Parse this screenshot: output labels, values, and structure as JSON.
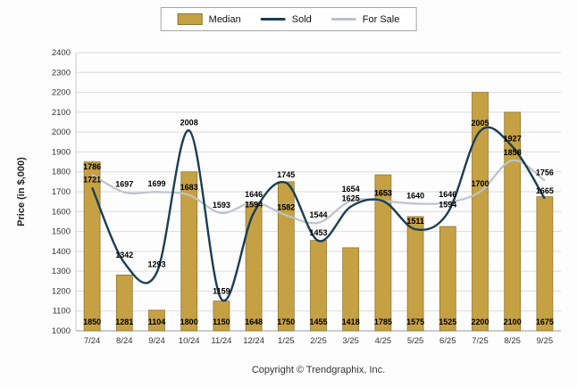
{
  "legend": {
    "median": "Median",
    "sold": "Sold",
    "for_sale": "For Sale"
  },
  "footer": {
    "copyright": "Copyright © Trendgraphix, Inc."
  },
  "colors": {
    "median_bar": "#C5A143",
    "median_bar_border": "#8F7430",
    "sold_line": "#1C3D56",
    "for_sale_line": "#BCC3CB",
    "grid": "#DCDCDC",
    "axis": "#999999",
    "left_axis": "#CCCCCC",
    "label": "#000000",
    "tick": "#333333",
    "axis_title": "#222222"
  },
  "chart_data": {
    "type": "bar",
    "subtype": "combo-bar-line",
    "title": "",
    "categories": [
      "7/24",
      "8/24",
      "9/24",
      "10/24",
      "11/24",
      "12/24",
      "1/25",
      "2/25",
      "3/25",
      "4/25",
      "5/25",
      "6/25",
      "7/25",
      "8/25",
      "9/25"
    ],
    "series": [
      {
        "name": "Median",
        "type": "bar",
        "values": [
          1850,
          1281,
          1104,
          1800,
          1150,
          1648,
          1750,
          1455,
          1418,
          1785,
          1575,
          1525,
          2200,
          2100,
          1675
        ]
      },
      {
        "name": "Sold",
        "type": "line",
        "values": [
          1721,
          1342,
          1293,
          2008,
          1159,
          1594,
          1745,
          1453,
          1625,
          1653,
          1511,
          1594,
          2005,
          1927,
          1665
        ]
      },
      {
        "name": "For Sale",
        "type": "line",
        "values": [
          1786,
          1697,
          1699,
          1683,
          1593,
          1646,
          1582,
          1544,
          1654,
          1653,
          1640,
          1646,
          1700,
          1858,
          1756
        ]
      }
    ],
    "xlabel": "",
    "ylabel": "Price (in $,000)",
    "ylim": [
      1000,
      2400
    ],
    "ytick_step": 100,
    "grid": true,
    "legend_position": "top"
  }
}
